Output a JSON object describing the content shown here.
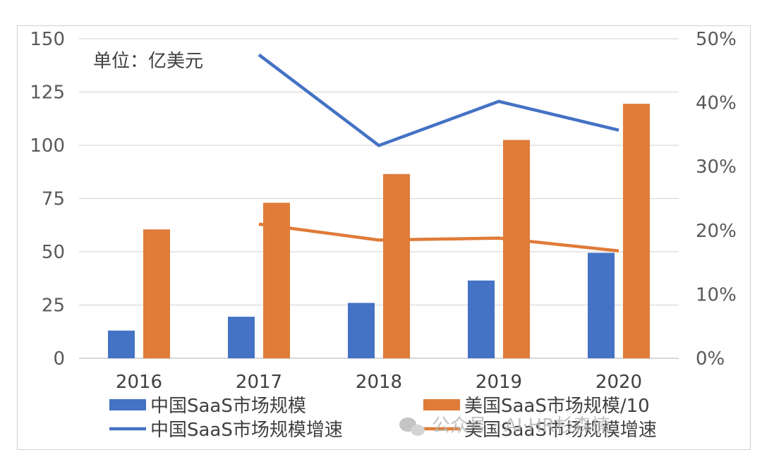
{
  "chart_data": {
    "type": "bar",
    "categories": [
      "2016",
      "2017",
      "2018",
      "2019",
      "2020"
    ],
    "unit_label": "单位：亿美元",
    "y_left": {
      "min": 0,
      "max": 150,
      "ticks": [
        "0",
        "25",
        "50",
        "75",
        "100",
        "125",
        "150"
      ]
    },
    "y_right": {
      "min": 0,
      "max": 0.5,
      "ticks": [
        "0%",
        "10%",
        "20%",
        "30%",
        "40%",
        "50%"
      ]
    },
    "grid": true,
    "legend_position": "bottom",
    "series": [
      {
        "name": "中国SaaS市场规模",
        "kind": "bar",
        "axis": "left",
        "color": "#4472C4",
        "values": [
          13,
          19.5,
          26,
          36.5,
          49.5
        ]
      },
      {
        "name": "美国SaaS市场规模/10",
        "kind": "bar",
        "axis": "left",
        "color": "#E07B39",
        "values": [
          60.5,
          73,
          86.5,
          102.5,
          119.5
        ]
      },
      {
        "name": "中国SaaS市场规模增速",
        "kind": "line",
        "axis": "right",
        "color": "#4472C4",
        "values": [
          null,
          0.475,
          0.333,
          0.402,
          0.357
        ]
      },
      {
        "name": "美国SaaS市场规模增速",
        "kind": "line",
        "axis": "right",
        "color": "#E07B39",
        "values": [
          null,
          0.21,
          0.185,
          0.188,
          0.168
        ]
      }
    ]
  },
  "watermark": "公众号 · AI·HR杉森楠"
}
